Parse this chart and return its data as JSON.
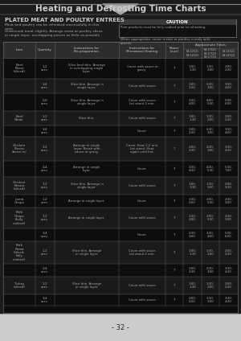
{
  "title": "Heating and Defrosting Time Charts",
  "section_title": "PLATED MEAT AND POULTRY ENTREES",
  "caution_title": "CAUTION",
  "caution_text": "Pork products must be fully cooked prior to reheating.",
  "page_number": "- 32 -",
  "page_bg": "#1c1c1c",
  "title_area_bg": "#1c1c1c",
  "title_color": "#cccccc",
  "section_color": "#cccccc",
  "text_color": "#aaaaaa",
  "border_color": "#666666",
  "cell_bg_dark": "#0d0d0d",
  "cell_bg_mid": "#1a1a1a",
  "header_cell_bg": "#2d2d2d",
  "caution_box_bg": "#111111",
  "caution_header_bg": "#3a3a3a",
  "footer_bg": "#cccccc",
  "footer_text": "#222222",
  "tri_color": "#aaaaaa",
  "top_line_color": "#888888"
}
